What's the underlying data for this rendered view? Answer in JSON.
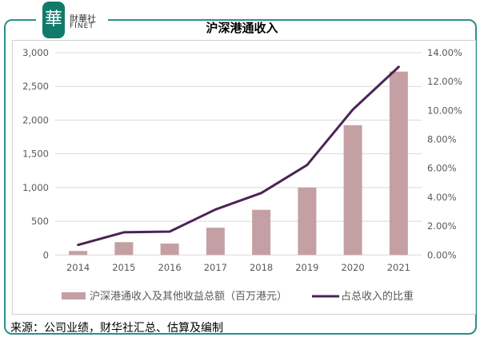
{
  "logo": {
    "cn": "財華社",
    "en": "FINET",
    "mark": "華"
  },
  "footer": "来源：公司业绩，财华社汇总、估算及编制",
  "colors": {
    "frame": "#2a8f8a",
    "bar": "#c4a0a4",
    "line": "#4b2455"
  },
  "chart_data": {
    "type": "bar+line",
    "title": "沪深港通收入",
    "categories": [
      "2014",
      "2015",
      "2016",
      "2017",
      "2018",
      "2019",
      "2020",
      "2021"
    ],
    "series": [
      {
        "name": "沪深港通收入及其他收益总额（百万港元）",
        "type": "bar",
        "axis": "left",
        "values": [
          60,
          190,
          170,
          405,
          670,
          1000,
          1925,
          2720
        ]
      },
      {
        "name": "占总收入的比重",
        "type": "line",
        "axis": "right",
        "values": [
          0.7,
          1.57,
          1.62,
          3.15,
          4.29,
          6.23,
          10.07,
          13.02
        ]
      }
    ],
    "y_left": {
      "range": [
        0,
        3000
      ],
      "ticks": [
        "0",
        "500",
        "1,000",
        "1,500",
        "2,000",
        "2,500",
        "3,000"
      ]
    },
    "y_right": {
      "range": [
        0,
        14
      ],
      "ticks": [
        "0.00%",
        "2.00%",
        "4.00%",
        "6.00%",
        "8.00%",
        "10.00%",
        "12.00%",
        "14.00%"
      ]
    },
    "grid": true,
    "legend": "bottom"
  }
}
